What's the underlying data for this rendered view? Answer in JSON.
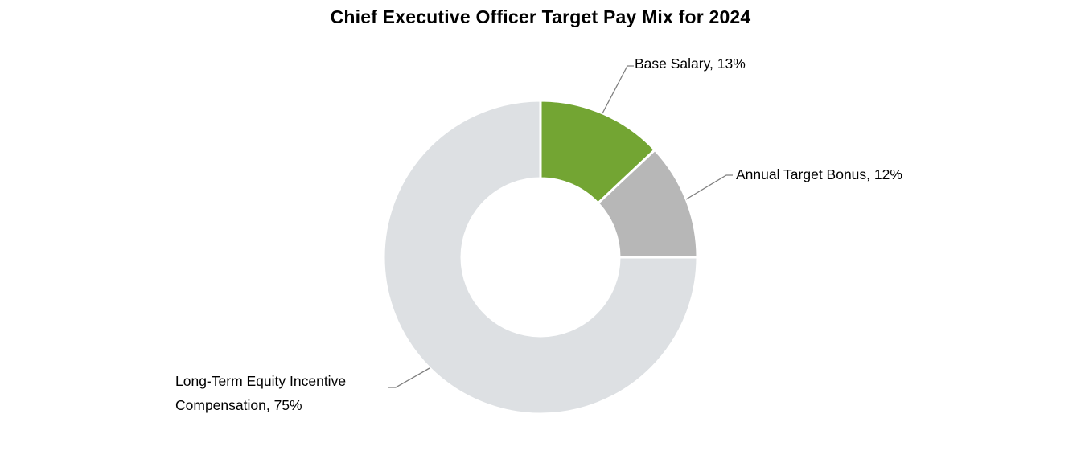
{
  "chart_data": {
    "type": "donut",
    "title": "Chief Executive Officer Target Pay Mix for 2024",
    "categories": [
      "Base Salary",
      "Annual Target Bonus",
      "Long-Term Equity Incentive Compensation"
    ],
    "values": [
      13,
      12,
      75
    ],
    "unit": "%",
    "colors": [
      "#73A533",
      "#B7B7B7",
      "#DDE0E3"
    ],
    "start_angle_deg": 0,
    "clockwise": true,
    "inner_radius_ratio": 0.5,
    "slice_gap_color": "#FFFFFF",
    "leader_line_color": "#7F7F7F",
    "legend_position": "none",
    "grid": false,
    "labels": {
      "base_salary": "Base Salary, 13%",
      "annual_bonus": "Annual Target Bonus, 12%",
      "lt_equity_line1": "Long-Term Equity Incentive",
      "lt_equity_line2": "Compensation, 75%"
    }
  }
}
